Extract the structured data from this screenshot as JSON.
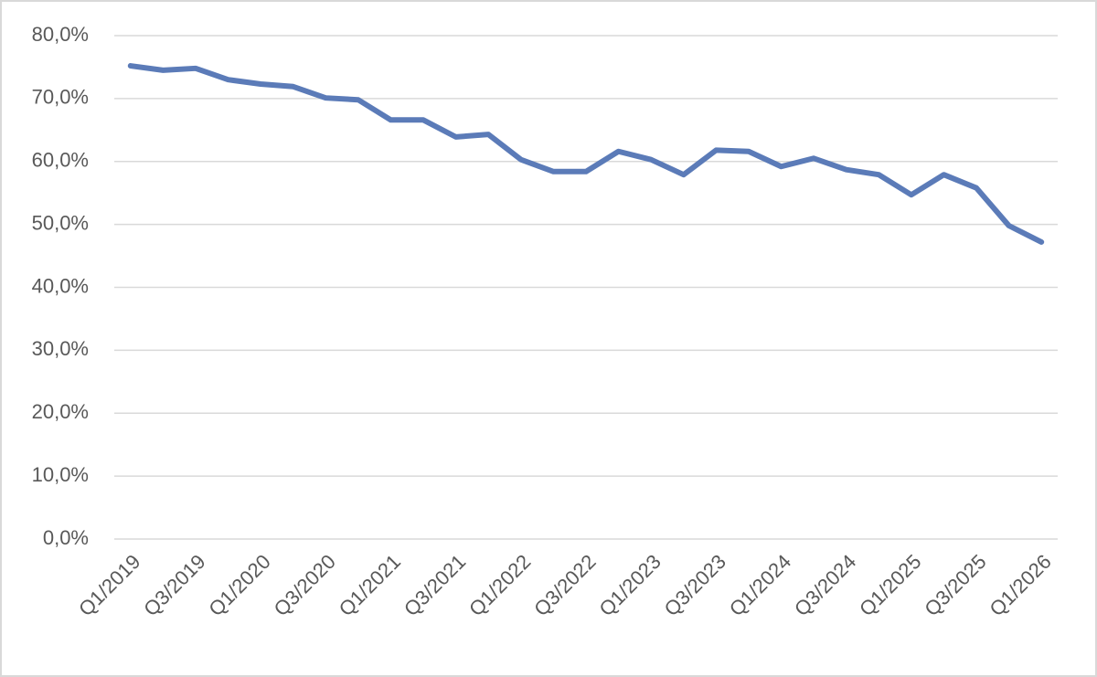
{
  "chart_data": {
    "type": "line",
    "categories": [
      "Q1/2019",
      null,
      "Q3/2019",
      null,
      "Q1/2020",
      null,
      "Q3/2020",
      null,
      "Q1/2021",
      null,
      "Q3/2021",
      null,
      "Q1/2022",
      null,
      "Q3/2022",
      null,
      "Q1/2023",
      null,
      "Q3/2023",
      null,
      "Q1/2024",
      null,
      "Q3/2024",
      null,
      "Q1/2025",
      null,
      "Q3/2025",
      null,
      "Q1/2026"
    ],
    "values": [
      75.2,
      74.5,
      74.8,
      73.0,
      72.3,
      71.9,
      70.1,
      69.8,
      66.6,
      66.6,
      63.9,
      64.3,
      60.3,
      58.4,
      58.4,
      61.6,
      60.3,
      57.9,
      61.8,
      61.6,
      59.2,
      60.5,
      58.7,
      57.9,
      54.7,
      57.9,
      55.8,
      49.8,
      47.2
    ],
    "color": "#5b7bb8",
    "ylim": [
      0,
      80
    ],
    "yticks": [
      {
        "value": 0,
        "label": "0,0%"
      },
      {
        "value": 10,
        "label": "10,0%"
      },
      {
        "value": 20,
        "label": "20,0%"
      },
      {
        "value": 30,
        "label": "30,0%"
      },
      {
        "value": 40,
        "label": "40,0%"
      },
      {
        "value": 50,
        "label": "50,0%"
      },
      {
        "value": 60,
        "label": "60,0%"
      },
      {
        "value": 70,
        "label": "70,0%"
      },
      {
        "value": 80,
        "label": "80,0%"
      }
    ],
    "grid": true
  }
}
